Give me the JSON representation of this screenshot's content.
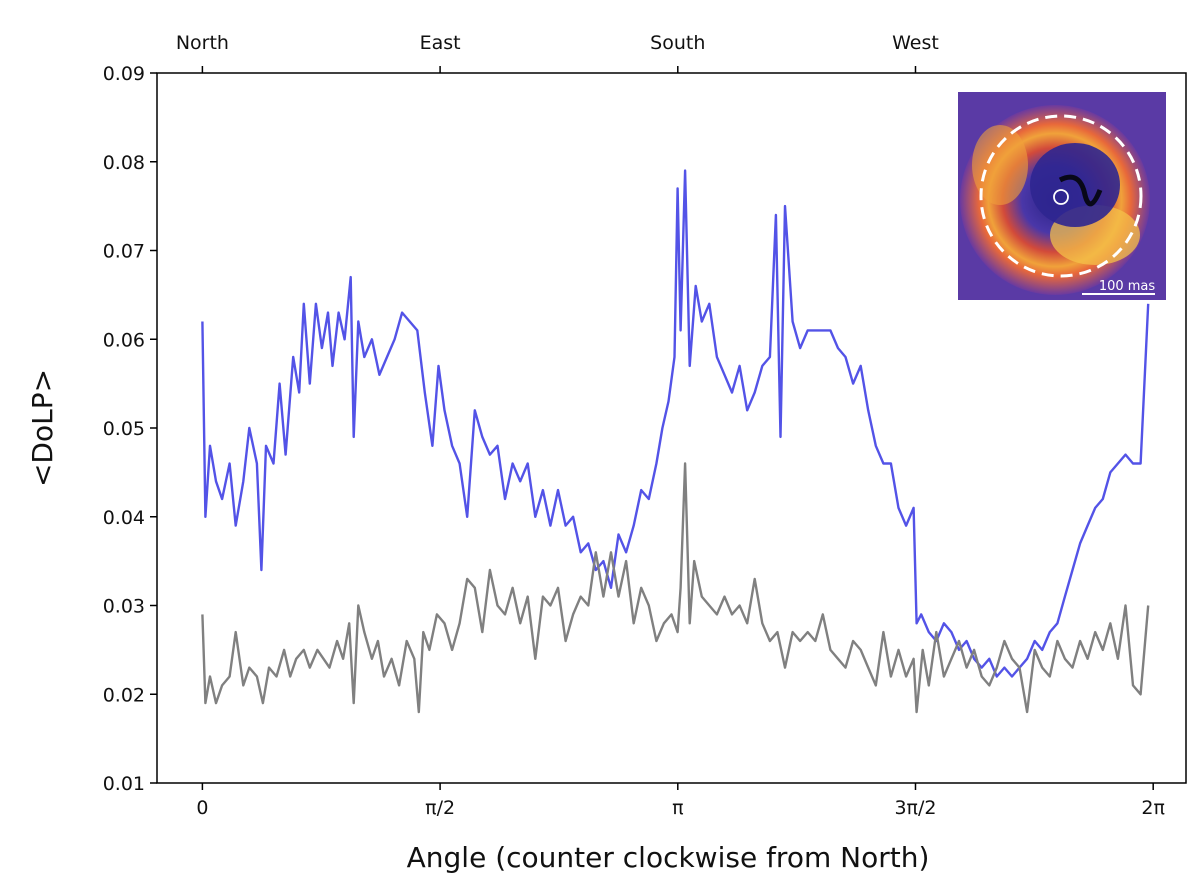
{
  "chart_data": {
    "type": "line",
    "title": "",
    "xlabel": "Angle (counter clockwise from North)",
    "ylabel": "<DoLP>",
    "xlim": [
      -0.3,
      6.5
    ],
    "ylim": [
      0.01,
      0.09
    ],
    "grid": false,
    "x_ticks": [
      {
        "value": 0,
        "label": "0"
      },
      {
        "value": 1.5708,
        "label": "π/2"
      },
      {
        "value": 3.1416,
        "label": "π"
      },
      {
        "value": 4.7124,
        "label": "3π/2"
      },
      {
        "value": 6.2832,
        "label": "2π"
      }
    ],
    "top_ticks": [
      {
        "value": 0,
        "label": "North"
      },
      {
        "value": 1.5708,
        "label": "East"
      },
      {
        "value": 3.1416,
        "label": "South"
      },
      {
        "value": 4.7124,
        "label": "West"
      }
    ],
    "y_ticks": [
      0.01,
      0.02,
      0.03,
      0.04,
      0.05,
      0.06,
      0.07,
      0.08,
      0.09
    ],
    "y_tick_labels": [
      "0.01",
      "0.02",
      "0.03",
      "0.04",
      "0.05",
      "0.06",
      "0.07",
      "0.08",
      "0.09"
    ],
    "series": [
      {
        "color": "#4a4ae6",
        "points": [
          [
            0.0,
            0.062
          ],
          [
            0.02,
            0.04
          ],
          [
            0.05,
            0.048
          ],
          [
            0.09,
            0.044
          ],
          [
            0.13,
            0.042
          ],
          [
            0.18,
            0.046
          ],
          [
            0.22,
            0.039
          ],
          [
            0.27,
            0.044
          ],
          [
            0.31,
            0.05
          ],
          [
            0.36,
            0.046
          ],
          [
            0.39,
            0.034
          ],
          [
            0.42,
            0.048
          ],
          [
            0.47,
            0.046
          ],
          [
            0.51,
            0.055
          ],
          [
            0.55,
            0.047
          ],
          [
            0.6,
            0.058
          ],
          [
            0.64,
            0.054
          ],
          [
            0.67,
            0.064
          ],
          [
            0.71,
            0.055
          ],
          [
            0.75,
            0.064
          ],
          [
            0.79,
            0.059
          ],
          [
            0.83,
            0.063
          ],
          [
            0.86,
            0.057
          ],
          [
            0.9,
            0.063
          ],
          [
            0.94,
            0.06
          ],
          [
            0.98,
            0.067
          ],
          [
            1.0,
            0.049
          ],
          [
            1.03,
            0.062
          ],
          [
            1.07,
            0.058
          ],
          [
            1.12,
            0.06
          ],
          [
            1.17,
            0.056
          ],
          [
            1.22,
            0.058
          ],
          [
            1.27,
            0.06
          ],
          [
            1.32,
            0.063
          ],
          [
            1.37,
            0.062
          ],
          [
            1.42,
            0.061
          ],
          [
            1.47,
            0.054
          ],
          [
            1.52,
            0.048
          ],
          [
            1.56,
            0.057
          ],
          [
            1.6,
            0.052
          ],
          [
            1.65,
            0.048
          ],
          [
            1.7,
            0.046
          ],
          [
            1.75,
            0.04
          ],
          [
            1.8,
            0.052
          ],
          [
            1.85,
            0.049
          ],
          [
            1.9,
            0.047
          ],
          [
            1.95,
            0.048
          ],
          [
            2.0,
            0.042
          ],
          [
            2.05,
            0.046
          ],
          [
            2.1,
            0.044
          ],
          [
            2.15,
            0.046
          ],
          [
            2.2,
            0.04
          ],
          [
            2.25,
            0.043
          ],
          [
            2.3,
            0.039
          ],
          [
            2.35,
            0.043
          ],
          [
            2.4,
            0.039
          ],
          [
            2.45,
            0.04
          ],
          [
            2.5,
            0.036
          ],
          [
            2.55,
            0.037
          ],
          [
            2.6,
            0.034
          ],
          [
            2.65,
            0.035
          ],
          [
            2.7,
            0.032
          ],
          [
            2.75,
            0.038
          ],
          [
            2.8,
            0.036
          ],
          [
            2.85,
            0.039
          ],
          [
            2.9,
            0.043
          ],
          [
            2.95,
            0.042
          ],
          [
            3.0,
            0.046
          ],
          [
            3.04,
            0.05
          ],
          [
            3.08,
            0.053
          ],
          [
            3.12,
            0.058
          ],
          [
            3.14,
            0.077
          ],
          [
            3.16,
            0.061
          ],
          [
            3.19,
            0.079
          ],
          [
            3.22,
            0.057
          ],
          [
            3.26,
            0.066
          ],
          [
            3.3,
            0.062
          ],
          [
            3.35,
            0.064
          ],
          [
            3.4,
            0.058
          ],
          [
            3.45,
            0.056
          ],
          [
            3.5,
            0.054
          ],
          [
            3.55,
            0.057
          ],
          [
            3.6,
            0.052
          ],
          [
            3.65,
            0.054
          ],
          [
            3.7,
            0.057
          ],
          [
            3.75,
            0.058
          ],
          [
            3.79,
            0.074
          ],
          [
            3.82,
            0.049
          ],
          [
            3.85,
            0.075
          ],
          [
            3.9,
            0.062
          ],
          [
            3.95,
            0.059
          ],
          [
            4.0,
            0.061
          ],
          [
            4.05,
            0.061
          ],
          [
            4.1,
            0.061
          ],
          [
            4.15,
            0.061
          ],
          [
            4.2,
            0.059
          ],
          [
            4.25,
            0.058
          ],
          [
            4.3,
            0.055
          ],
          [
            4.35,
            0.057
          ],
          [
            4.4,
            0.052
          ],
          [
            4.45,
            0.048
          ],
          [
            4.5,
            0.046
          ],
          [
            4.55,
            0.046
          ],
          [
            4.6,
            0.041
          ],
          [
            4.65,
            0.039
          ],
          [
            4.7,
            0.041
          ],
          [
            4.72,
            0.028
          ],
          [
            4.75,
            0.029
          ],
          [
            4.8,
            0.027
          ],
          [
            4.85,
            0.026
          ],
          [
            4.9,
            0.028
          ],
          [
            4.95,
            0.027
          ],
          [
            5.0,
            0.025
          ],
          [
            5.05,
            0.026
          ],
          [
            5.1,
            0.024
          ],
          [
            5.15,
            0.023
          ],
          [
            5.2,
            0.024
          ],
          [
            5.25,
            0.022
          ],
          [
            5.3,
            0.023
          ],
          [
            5.35,
            0.022
          ],
          [
            5.4,
            0.023
          ],
          [
            5.45,
            0.024
          ],
          [
            5.5,
            0.026
          ],
          [
            5.55,
            0.025
          ],
          [
            5.6,
            0.027
          ],
          [
            5.65,
            0.028
          ],
          [
            5.7,
            0.031
          ],
          [
            5.75,
            0.034
          ],
          [
            5.8,
            0.037
          ],
          [
            5.85,
            0.039
          ],
          [
            5.9,
            0.041
          ],
          [
            5.95,
            0.042
          ],
          [
            6.0,
            0.045
          ],
          [
            6.05,
            0.046
          ],
          [
            6.1,
            0.047
          ],
          [
            6.15,
            0.046
          ],
          [
            6.2,
            0.046
          ],
          [
            6.25,
            0.064
          ]
        ]
      },
      {
        "color": "#808080",
        "points": [
          [
            0.0,
            0.029
          ],
          [
            0.02,
            0.019
          ],
          [
            0.05,
            0.022
          ],
          [
            0.09,
            0.019
          ],
          [
            0.13,
            0.021
          ],
          [
            0.18,
            0.022
          ],
          [
            0.22,
            0.027
          ],
          [
            0.27,
            0.021
          ],
          [
            0.31,
            0.023
          ],
          [
            0.36,
            0.022
          ],
          [
            0.4,
            0.019
          ],
          [
            0.44,
            0.023
          ],
          [
            0.49,
            0.022
          ],
          [
            0.54,
            0.025
          ],
          [
            0.58,
            0.022
          ],
          [
            0.62,
            0.024
          ],
          [
            0.67,
            0.025
          ],
          [
            0.71,
            0.023
          ],
          [
            0.76,
            0.025
          ],
          [
            0.8,
            0.024
          ],
          [
            0.84,
            0.023
          ],
          [
            0.89,
            0.026
          ],
          [
            0.93,
            0.024
          ],
          [
            0.97,
            0.028
          ],
          [
            1.0,
            0.019
          ],
          [
            1.03,
            0.03
          ],
          [
            1.07,
            0.027
          ],
          [
            1.12,
            0.024
          ],
          [
            1.16,
            0.026
          ],
          [
            1.2,
            0.022
          ],
          [
            1.25,
            0.024
          ],
          [
            1.3,
            0.021
          ],
          [
            1.35,
            0.026
          ],
          [
            1.4,
            0.024
          ],
          [
            1.43,
            0.018
          ],
          [
            1.46,
            0.027
          ],
          [
            1.5,
            0.025
          ],
          [
            1.55,
            0.029
          ],
          [
            1.6,
            0.028
          ],
          [
            1.65,
            0.025
          ],
          [
            1.7,
            0.028
          ],
          [
            1.75,
            0.033
          ],
          [
            1.8,
            0.032
          ],
          [
            1.85,
            0.027
          ],
          [
            1.9,
            0.034
          ],
          [
            1.95,
            0.03
          ],
          [
            2.0,
            0.029
          ],
          [
            2.05,
            0.032
          ],
          [
            2.1,
            0.028
          ],
          [
            2.15,
            0.031
          ],
          [
            2.2,
            0.024
          ],
          [
            2.25,
            0.031
          ],
          [
            2.3,
            0.03
          ],
          [
            2.35,
            0.032
          ],
          [
            2.4,
            0.026
          ],
          [
            2.45,
            0.029
          ],
          [
            2.5,
            0.031
          ],
          [
            2.55,
            0.03
          ],
          [
            2.6,
            0.036
          ],
          [
            2.65,
            0.031
          ],
          [
            2.7,
            0.036
          ],
          [
            2.75,
            0.031
          ],
          [
            2.8,
            0.035
          ],
          [
            2.85,
            0.028
          ],
          [
            2.9,
            0.032
          ],
          [
            2.95,
            0.03
          ],
          [
            3.0,
            0.026
          ],
          [
            3.05,
            0.028
          ],
          [
            3.1,
            0.029
          ],
          [
            3.14,
            0.027
          ],
          [
            3.16,
            0.032
          ],
          [
            3.19,
            0.046
          ],
          [
            3.22,
            0.028
          ],
          [
            3.25,
            0.035
          ],
          [
            3.3,
            0.031
          ],
          [
            3.35,
            0.03
          ],
          [
            3.4,
            0.029
          ],
          [
            3.45,
            0.031
          ],
          [
            3.5,
            0.029
          ],
          [
            3.55,
            0.03
          ],
          [
            3.6,
            0.028
          ],
          [
            3.65,
            0.033
          ],
          [
            3.7,
            0.028
          ],
          [
            3.75,
            0.026
          ],
          [
            3.8,
            0.027
          ],
          [
            3.85,
            0.023
          ],
          [
            3.9,
            0.027
          ],
          [
            3.95,
            0.026
          ],
          [
            4.0,
            0.027
          ],
          [
            4.05,
            0.026
          ],
          [
            4.1,
            0.029
          ],
          [
            4.15,
            0.025
          ],
          [
            4.2,
            0.024
          ],
          [
            4.25,
            0.023
          ],
          [
            4.3,
            0.026
          ],
          [
            4.35,
            0.025
          ],
          [
            4.4,
            0.023
          ],
          [
            4.45,
            0.021
          ],
          [
            4.5,
            0.027
          ],
          [
            4.55,
            0.022
          ],
          [
            4.6,
            0.025
          ],
          [
            4.65,
            0.022
          ],
          [
            4.7,
            0.024
          ],
          [
            4.72,
            0.018
          ],
          [
            4.76,
            0.025
          ],
          [
            4.8,
            0.021
          ],
          [
            4.85,
            0.027
          ],
          [
            4.9,
            0.022
          ],
          [
            4.95,
            0.024
          ],
          [
            5.0,
            0.026
          ],
          [
            5.05,
            0.023
          ],
          [
            5.1,
            0.025
          ],
          [
            5.15,
            0.022
          ],
          [
            5.2,
            0.021
          ],
          [
            5.25,
            0.023
          ],
          [
            5.3,
            0.026
          ],
          [
            5.35,
            0.024
          ],
          [
            5.4,
            0.023
          ],
          [
            5.45,
            0.018
          ],
          [
            5.5,
            0.025
          ],
          [
            5.55,
            0.023
          ],
          [
            5.6,
            0.022
          ],
          [
            5.65,
            0.026
          ],
          [
            5.7,
            0.024
          ],
          [
            5.75,
            0.023
          ],
          [
            5.8,
            0.026
          ],
          [
            5.85,
            0.024
          ],
          [
            5.9,
            0.027
          ],
          [
            5.95,
            0.025
          ],
          [
            6.0,
            0.028
          ],
          [
            6.05,
            0.024
          ],
          [
            6.1,
            0.03
          ],
          [
            6.15,
            0.021
          ],
          [
            6.2,
            0.02
          ],
          [
            6.25,
            0.03
          ]
        ]
      }
    ]
  },
  "inset": {
    "scale_label": "100 mas",
    "colors": {
      "dark": "#3a2f9a",
      "mid": "#e0542e",
      "bright": "#f2b13a",
      "circle": "#ffffff"
    }
  }
}
